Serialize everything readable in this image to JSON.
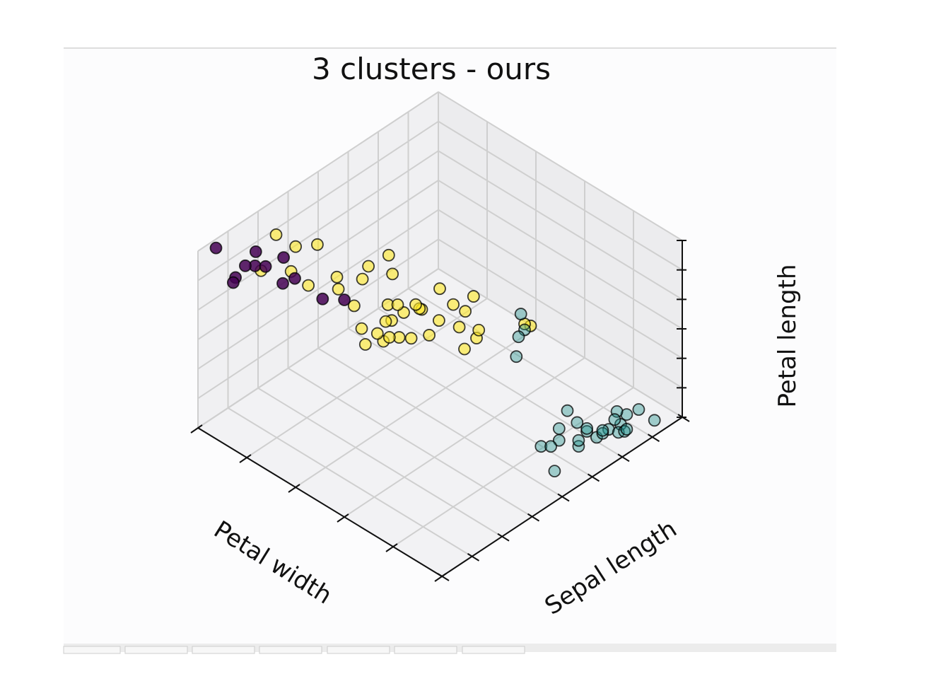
{
  "chart_data": {
    "type": "scatter3d",
    "title": "3 clusters - ours",
    "xlabel": "Petal width",
    "ylabel": "Sepal length",
    "zlabel": "Petal length",
    "xlim": [
      0,
      2.5
    ],
    "xticks": [
      0,
      0.5,
      1,
      1.5,
      2,
      2.5
    ],
    "ylim": [
      4,
      8
    ],
    "yticks": [
      4,
      4.5,
      5,
      5.5,
      6,
      6.5,
      7,
      7.5,
      8
    ],
    "zlim": [
      1,
      7
    ],
    "zticks": [
      1,
      2,
      3,
      4,
      5,
      6,
      7
    ],
    "grid": true,
    "series": [
      {
        "color": "#fde725",
        "alpha": 0.6,
        "x": [
          1.4,
          1.5,
          1.5,
          1.3,
          1.5,
          1.3,
          1.6,
          1.0,
          1.3,
          1.4,
          1.0,
          1.5,
          1.0,
          1.4,
          1.3,
          1.4,
          1.5,
          1.0,
          1.5,
          1.1,
          1.8,
          1.3,
          1.5,
          1.2,
          1.3,
          1.4,
          1.4,
          1.7,
          1.5,
          1.9,
          2.1,
          1.8,
          2.2,
          2.1,
          1.8,
          2.3,
          2.0,
          1.8,
          1.8,
          2.5
        ],
        "y": [
          7.0,
          6.4,
          6.9,
          5.5,
          6.5,
          5.7,
          6.3,
          4.9,
          6.6,
          5.2,
          5.0,
          5.9,
          6.0,
          6.1,
          5.6,
          6.7,
          5.6,
          5.8,
          6.2,
          5.6,
          5.9,
          6.1,
          6.3,
          6.1,
          6.4,
          6.6,
          6.8,
          6.7,
          6.0,
          5.8,
          7.1,
          6.3,
          6.5,
          7.6,
          7.3,
          6.7,
          6.5,
          6.4,
          6.8,
          6.7
        ],
        "z": [
          4.7,
          4.5,
          4.9,
          4.0,
          4.6,
          4.5,
          4.7,
          3.3,
          4.6,
          3.9,
          3.5,
          4.2,
          4.0,
          4.7,
          3.6,
          4.4,
          4.5,
          4.1,
          4.5,
          3.9,
          4.8,
          4.0,
          4.9,
          4.7,
          4.3,
          4.4,
          4.8,
          5.0,
          4.5,
          5.1,
          5.9,
          5.6,
          5.8,
          6.6,
          6.3,
          5.8,
          5.1,
          5.3,
          5.5,
          5.8
        ]
      },
      {
        "color": "#440154",
        "alpha": 0.85,
        "x": [
          2.5,
          2.1,
          2.3,
          2.2,
          2.0,
          2.4,
          2.3,
          2.0,
          2.2,
          1.9,
          2.3,
          1.8
        ],
        "y": [
          7.7,
          7.7,
          7.7,
          7.9,
          7.2,
          7.2,
          7.2,
          7.4,
          7.7,
          6.9,
          6.9,
          6.7
        ],
        "z": [
          6.7,
          6.9,
          6.1,
          6.4,
          6.0,
          6.1,
          5.8,
          6.1,
          6.7,
          5.1,
          5.7,
          5.0
        ]
      },
      {
        "color": "#21918c",
        "alpha": 0.4,
        "x": [
          0.2,
          0.2,
          0.2,
          0.2,
          0.2,
          0.4,
          0.3,
          0.2,
          0.2,
          0.1,
          0.2,
          0.2,
          0.1,
          0.1,
          0.2,
          0.4,
          0.4,
          0.3,
          0.3,
          0.3,
          0.2,
          0.4,
          0.2,
          0.5,
          1.0,
          1.1,
          1.0,
          0.9
        ],
        "y": [
          5.1,
          4.9,
          4.7,
          4.6,
          5.0,
          5.4,
          4.6,
          5.0,
          4.4,
          4.9,
          5.4,
          4.8,
          4.8,
          4.3,
          5.8,
          5.7,
          5.4,
          5.1,
          5.7,
          5.1,
          5.4,
          5.1,
          4.6,
          5.1,
          5.0,
          4.9,
          5.1,
          5.3
        ],
        "z": [
          1.4,
          1.4,
          1.3,
          1.5,
          1.4,
          1.7,
          1.4,
          1.5,
          1.4,
          1.5,
          1.5,
          1.6,
          1.4,
          1.1,
          1.2,
          1.5,
          1.3,
          1.4,
          1.7,
          1.5,
          1.7,
          1.5,
          1.0,
          1.7,
          3.3,
          3.5,
          3.2,
          3.0
        ]
      }
    ]
  }
}
